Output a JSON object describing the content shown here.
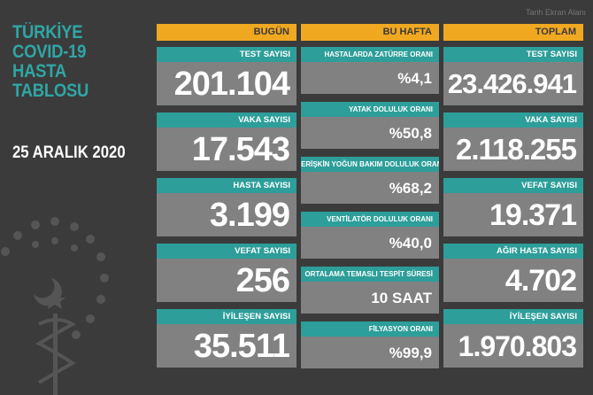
{
  "title_lines": [
    "TÜRKİYE",
    "COVID-19",
    "HASTA",
    "TABLOSU"
  ],
  "date": "25 ARALIK 2020",
  "watermark": "Tarih Ekran Alanı",
  "today": {
    "header": "BUGÜN",
    "items": [
      {
        "label": "TEST SAYISI",
        "value": "201.104"
      },
      {
        "label": "VAKA SAYISI",
        "value": "17.543"
      },
      {
        "label": "HASTA SAYISI",
        "value": "3.199"
      },
      {
        "label": "VEFAT SAYISI",
        "value": "256"
      },
      {
        "label": "İYİLEŞEN SAYISI",
        "value": "35.511"
      }
    ]
  },
  "week": {
    "header": "BU HAFTA",
    "items": [
      {
        "label": "HASTALARDA ZATÜRRE ORANI",
        "value": "%4,1"
      },
      {
        "label": "YATAK DOLULUK ORANI",
        "value": "%50,8"
      },
      {
        "label": "ERİŞKİN YOĞUN BAKIM DOLULUK ORANI",
        "value": "%68,2"
      },
      {
        "label": "VENTİLATÖR DOLULUK ORANI",
        "value": "%40,0"
      },
      {
        "label": "ORTALAMA TEMASLI TESPİT SÜRESİ",
        "value": "10 SAAT"
      },
      {
        "label": "FİLYASYON ORANI",
        "value": "%99,9"
      }
    ]
  },
  "total": {
    "header": "TOPLAM",
    "items": [
      {
        "label": "TEST SAYISI",
        "value": "23.426.941"
      },
      {
        "label": "VAKA SAYISI",
        "value": "2.118.255"
      },
      {
        "label": "VEFAT SAYISI",
        "value": "19.371"
      },
      {
        "label": "AĞIR HASTA SAYISI",
        "value": "4.702"
      },
      {
        "label": "İYİLEŞEN SAYISI",
        "value": "1.970.803"
      }
    ]
  },
  "colors": {
    "background": "#3b3b3b",
    "header": "#f0a821",
    "label": "#2d9e9a",
    "value_box": "#818181",
    "title": "#2fa6a4"
  },
  "icons": {
    "emblem": "ministry-of-health-emblem-icon"
  }
}
